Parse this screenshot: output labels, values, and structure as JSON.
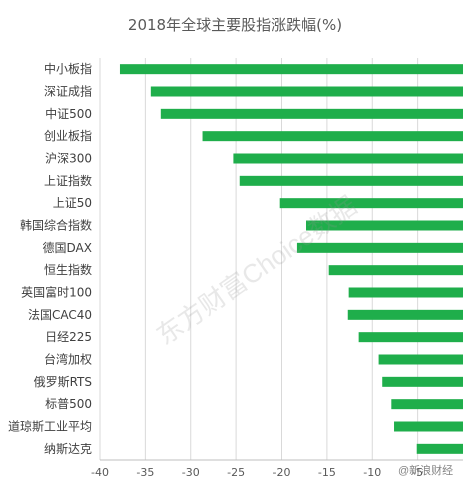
{
  "chart_data": {
    "type": "bar",
    "orientation": "horizontal",
    "title": "2018年全球主要股指涨跌幅(%)",
    "xlabel": "",
    "ylabel": "",
    "xlim": [
      -40,
      0
    ],
    "xticks": [
      -40,
      -35,
      -30,
      -25,
      -20,
      -15,
      -10,
      -5
    ],
    "grid": "vertical",
    "legend": "none",
    "bar_color": "#1fae4b",
    "categories": [
      "中小板指",
      "深证成指",
      "中证500",
      "创业板指",
      "沪深300",
      "上证指数",
      "上证50",
      "韩国综合指数",
      "德国DAX",
      "恒生指数",
      "英国富时100",
      "法国CAC40",
      "日经225",
      "台湾加权",
      "俄罗斯RTS",
      "标普500",
      "道琼斯工业平均",
      "纳斯达克"
    ],
    "values": [
      -37.8,
      -34.4,
      -33.3,
      -28.7,
      -25.3,
      -24.6,
      -20.2,
      -17.3,
      -18.3,
      -14.8,
      -12.6,
      -12.7,
      -11.5,
      -9.3,
      -8.9,
      -7.9,
      -7.6,
      -5.1
    ]
  },
  "watermark": "东方财富Choice数据",
  "weibo_tag": "@新浪财经"
}
